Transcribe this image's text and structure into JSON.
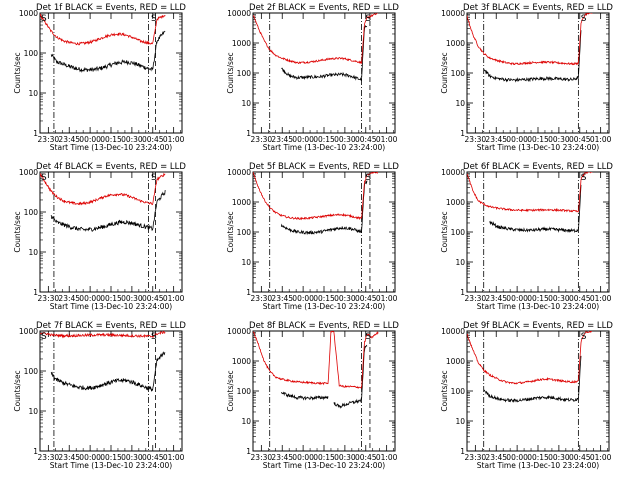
{
  "colors": {
    "events": "#000000",
    "lld": "#dd0000",
    "axis": "#000000"
  },
  "shared": {
    "ylabel": "Counts/sec",
    "xlabel": "Start Time (13-Dec-10 23:24:00)",
    "x_tick_labels": [
      "23:30",
      "23:45",
      "00:00",
      "00:15",
      "00:30",
      "00:45",
      "01:00"
    ],
    "y_tick_labels": [
      "1",
      "10",
      "100",
      "1000",
      "10000"
    ],
    "marker_label": "S"
  },
  "chart_data": [
    {
      "type": "line",
      "title": "Det 1f BLACK = Events, RED = LLD",
      "ylim": [
        1,
        1000
      ],
      "y_scale": "log",
      "xlim": [
        "23:24",
        "01:06"
      ],
      "x_minutes": [
        0,
        5,
        8,
        12,
        17,
        22,
        27,
        32,
        37,
        42,
        47,
        52,
        57,
        62,
        67,
        72,
        77,
        79,
        81,
        84,
        90
      ],
      "series": [
        {
          "name": "BLACK = Events",
          "values": [
            null,
            null,
            90,
            60,
            52,
            45,
            40,
            38,
            38,
            40,
            45,
            52,
            58,
            60,
            56,
            48,
            42,
            40,
            38,
            200,
            350
          ]
        },
        {
          "name": "RED = LLD",
          "values": [
            900,
            500,
            350,
            250,
            200,
            180,
            170,
            175,
            190,
            220,
            260,
            290,
            300,
            280,
            240,
            200,
            180,
            175,
            170,
            700,
            900
          ]
        }
      ],
      "vlines_dashdot": [
        10,
        78
      ],
      "vlines_dashed": [
        83
      ],
      "markers_S": [
        0,
        79
      ]
    },
    {
      "type": "line",
      "title": "Det 2f BLACK = Events, RED = LLD",
      "ylim": [
        1,
        10000
      ],
      "y_scale": "log",
      "xlim": [
        "23:24",
        "01:06"
      ],
      "x_minutes": [
        0,
        4,
        8,
        12,
        16,
        20,
        26,
        32,
        40,
        48,
        56,
        64,
        70,
        75,
        78,
        80,
        82,
        85,
        90
      ],
      "series": [
        {
          "name": "BLACK = Events",
          "values": [
            null,
            null,
            null,
            null,
            null,
            150,
            80,
            70,
            72,
            75,
            85,
            90,
            80,
            65,
            60,
            3000,
            4000,
            null,
            null
          ]
        },
        {
          "name": "RED = LLD",
          "values": [
            9000,
            3000,
            1200,
            600,
            400,
            320,
            260,
            220,
            230,
            260,
            300,
            310,
            270,
            240,
            220,
            4000,
            7000,
            8000,
            10000
          ]
        }
      ],
      "vlines_dashdot": [
        12,
        78
      ],
      "vlines_dashed": [
        84
      ],
      "markers_S": [
        80
      ]
    },
    {
      "type": "line",
      "title": "Det 3f BLACK = Events, RED = LLD",
      "ylim": [
        1,
        10000
      ],
      "y_scale": "log",
      "xlim": [
        "23:24",
        "01:06"
      ],
      "x_minutes": [
        0,
        4,
        8,
        12,
        16,
        22,
        28,
        34,
        40,
        46,
        52,
        58,
        64,
        70,
        76,
        80,
        82,
        85,
        90
      ],
      "series": [
        {
          "name": "BLACK = Events",
          "values": [
            null,
            null,
            null,
            140,
            80,
            65,
            60,
            58,
            60,
            62,
            65,
            66,
            64,
            62,
            60,
            70,
            3000,
            null,
            null
          ]
        },
        {
          "name": "RED = LLD",
          "values": [
            8000,
            2000,
            800,
            450,
            320,
            260,
            220,
            200,
            210,
            220,
            230,
            230,
            220,
            210,
            200,
            210,
            5000,
            9000,
            10000
          ]
        }
      ],
      "vlines_dashdot": [
        12,
        80
      ],
      "vlines_dashed": [],
      "markers_S": [
        81
      ]
    },
    {
      "type": "line",
      "title": "Det 4f BLACK = Events, RED = LLD",
      "ylim": [
        1,
        1000
      ],
      "y_scale": "log",
      "xlim": [
        "23:24",
        "01:06"
      ],
      "x_minutes": [
        0,
        5,
        8,
        12,
        17,
        22,
        27,
        32,
        37,
        42,
        47,
        52,
        57,
        62,
        67,
        72,
        77,
        79,
        81,
        84,
        90
      ],
      "series": [
        {
          "name": "BLACK = Events",
          "values": [
            null,
            null,
            80,
            55,
            48,
            42,
            38,
            36,
            37,
            40,
            44,
            50,
            55,
            56,
            52,
            46,
            42,
            40,
            38,
            180,
            320
          ]
        },
        {
          "name": "RED = LLD",
          "values": [
            900,
            480,
            330,
            240,
            190,
            170,
            160,
            165,
            180,
            210,
            250,
            270,
            280,
            260,
            225,
            190,
            170,
            165,
            160,
            650,
            900
          ]
        }
      ],
      "vlines_dashdot": [
        10,
        78
      ],
      "vlines_dashed": [
        83
      ],
      "markers_S": [
        0,
        79
      ]
    },
    {
      "type": "line",
      "title": "Det 5f BLACK = Events, RED = LLD",
      "ylim": [
        1,
        10000
      ],
      "y_scale": "log",
      "xlim": [
        "23:24",
        "01:06"
      ],
      "x_minutes": [
        0,
        4,
        8,
        12,
        16,
        20,
        26,
        32,
        40,
        48,
        56,
        64,
        70,
        75,
        78,
        80,
        82,
        85,
        90
      ],
      "series": [
        {
          "name": "BLACK = Events",
          "values": [
            null,
            null,
            null,
            null,
            null,
            170,
            120,
            100,
            95,
            100,
            120,
            140,
            130,
            110,
            100,
            3500,
            5000,
            null,
            null
          ]
        },
        {
          "name": "RED = LLD",
          "values": [
            9500,
            3000,
            1200,
            650,
            450,
            360,
            300,
            280,
            290,
            320,
            360,
            380,
            340,
            300,
            280,
            4500,
            8000,
            9000,
            10000
          ]
        }
      ],
      "vlines_dashdot": [
        12,
        78
      ],
      "vlines_dashed": [
        84
      ],
      "markers_S": [
        80
      ]
    },
    {
      "type": "line",
      "title": "Det 6f BLACK = Events, RED = LLD",
      "ylim": [
        1,
        10000
      ],
      "y_scale": "log",
      "xlim": [
        "23:24",
        "01:06"
      ],
      "x_minutes": [
        0,
        4,
        8,
        12,
        16,
        22,
        28,
        34,
        40,
        46,
        52,
        58,
        64,
        70,
        76,
        80,
        82,
        85,
        90
      ],
      "series": [
        {
          "name": "BLACK = Events",
          "values": [
            null,
            null,
            null,
            null,
            220,
            150,
            130,
            120,
            115,
            115,
            120,
            125,
            120,
            115,
            110,
            115,
            4000,
            null,
            null
          ]
        },
        {
          "name": "RED = LLD",
          "values": [
            9000,
            2500,
            1100,
            850,
            700,
            620,
            570,
            540,
            530,
            530,
            540,
            550,
            540,
            520,
            500,
            480,
            6000,
            9500,
            10000
          ]
        }
      ],
      "vlines_dashdot": [
        12,
        80
      ],
      "vlines_dashed": [],
      "markers_S": [
        81
      ]
    },
    {
      "type": "line",
      "title": "Det 7f BLACK = Events, RED = LLD",
      "ylim": [
        1,
        1000
      ],
      "y_scale": "log",
      "xlim": [
        "23:24",
        "01:06"
      ],
      "x_minutes": [
        0,
        5,
        8,
        12,
        17,
        22,
        27,
        32,
        37,
        42,
        47,
        52,
        57,
        62,
        67,
        72,
        77,
        79,
        81,
        84,
        90
      ],
      "series": [
        {
          "name": "BLACK = Events",
          "values": [
            null,
            null,
            85,
            60,
            50,
            44,
            40,
            38,
            38,
            42,
            48,
            54,
            58,
            58,
            52,
            44,
            38,
            36,
            34,
            180,
            300
          ]
        },
        {
          "name": "RED = LLD",
          "values": [
            900,
            850,
            800,
            780,
            760,
            760,
            770,
            780,
            790,
            800,
            800,
            790,
            780,
            770,
            760,
            750,
            740,
            740,
            730,
            850,
            950
          ]
        }
      ],
      "vlines_dashdot": [
        10,
        78
      ],
      "vlines_dashed": [
        83
      ],
      "markers_S": [
        0,
        79
      ]
    },
    {
      "type": "line",
      "title": "Det 8f BLACK = Events, RED = LLD",
      "ylim": [
        1,
        10000
      ],
      "y_scale": "log",
      "xlim": [
        "23:24",
        "01:06"
      ],
      "x_minutes": [
        0,
        4,
        8,
        12,
        16,
        20,
        26,
        32,
        40,
        48,
        54,
        56,
        58,
        62,
        66,
        70,
        75,
        78,
        80,
        82,
        85,
        90
      ],
      "series": [
        {
          "name": "BLACK = Events",
          "values": [
            null,
            null,
            null,
            null,
            null,
            90,
            70,
            60,
            58,
            60,
            62,
            null,
            40,
            30,
            35,
            40,
            45,
            50,
            2500,
            3500,
            null,
            null
          ]
        },
        {
          "name": "RED = LLD",
          "values": [
            10000,
            3500,
            1000,
            450,
            300,
            250,
            220,
            200,
            190,
            180,
            180,
            10000,
            10000,
            150,
            140,
            140,
            135,
            130,
            4000,
            8000,
            6000,
            9000
          ]
        }
      ],
      "vlines_dashdot": [
        12,
        78
      ],
      "vlines_dashed": [
        84
      ],
      "markers_S": [
        80
      ]
    },
    {
      "type": "line",
      "title": "Det 9f BLACK = Events, RED = LLD",
      "ylim": [
        1,
        10000
      ],
      "y_scale": "log",
      "xlim": [
        "23:24",
        "01:06"
      ],
      "x_minutes": [
        0,
        4,
        8,
        12,
        16,
        22,
        28,
        34,
        40,
        46,
        52,
        58,
        64,
        70,
        76,
        80,
        82,
        85,
        90
      ],
      "series": [
        {
          "name": "BLACK = Events",
          "values": [
            null,
            null,
            null,
            110,
            70,
            55,
            50,
            48,
            50,
            55,
            60,
            62,
            58,
            52,
            50,
            55,
            2000,
            null,
            null
          ]
        },
        {
          "name": "RED = LLD",
          "values": [
            8000,
            2500,
            900,
            500,
            350,
            250,
            200,
            180,
            190,
            210,
            240,
            250,
            230,
            210,
            200,
            210,
            5000,
            9000,
            10000
          ]
        }
      ],
      "vlines_dashdot": [
        12,
        80
      ],
      "vlines_dashed": [],
      "markers_S": [
        81
      ]
    }
  ]
}
